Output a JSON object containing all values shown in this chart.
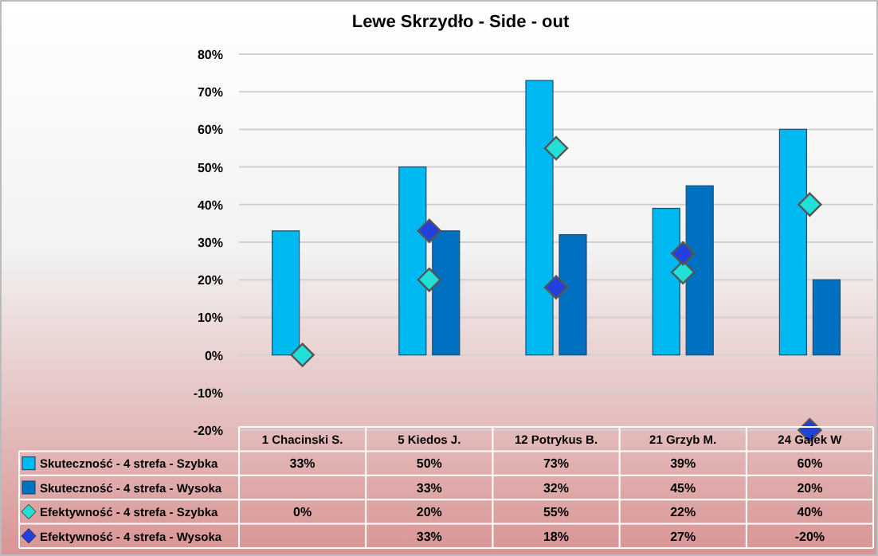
{
  "chart_data": {
    "type": "bar",
    "title": "Lewe Skrzydło - Side - out",
    "categories": [
      "1 Chacinski S.",
      "5 Kiedos J.",
      "12 Potrykus B.",
      "21 Grzyb M.",
      "24 Gajek W"
    ],
    "series": [
      {
        "name": "Skuteczność - 4 strefa - Szybka",
        "color": "#00b8f0",
        "values": [
          33,
          50,
          73,
          39,
          60
        ],
        "value_labels": [
          "33%",
          "50%",
          "73%",
          "39%",
          "60%"
        ]
      },
      {
        "name": "Skuteczność - 4 strefa - Wysoka",
        "color": "#0070c0",
        "values": [
          null,
          33,
          32,
          45,
          20
        ],
        "value_labels": [
          null,
          "33%",
          "32%",
          "45%",
          "20%"
        ]
      },
      {
        "name": "Efektywność - 4 strefa - Szybka",
        "type": "scatter",
        "color": "#20e0d8",
        "values": [
          0,
          20,
          55,
          22,
          40
        ],
        "value_labels": [
          "0%",
          "20%",
          "55%",
          "22%",
          "40%"
        ]
      },
      {
        "name": "Efektywność - 4 strefa - Wysoka",
        "type": "scatter",
        "color": "#2040e0",
        "values": [
          null,
          33,
          18,
          27,
          -20
        ],
        "value_labels": [
          null,
          "33%",
          "18%",
          "27%",
          "-20%"
        ]
      }
    ],
    "ylim": [
      -20,
      80
    ],
    "yticks": [
      {
        "value": -20,
        "label": "-20%"
      },
      {
        "value": -10,
        "label": "-10%"
      },
      {
        "value": 0,
        "label": "0%"
      },
      {
        "value": 10,
        "label": "10%"
      },
      {
        "value": 20,
        "label": "20%"
      },
      {
        "value": 30,
        "label": "30%"
      },
      {
        "value": 40,
        "label": "40%"
      },
      {
        "value": 50,
        "label": "50%"
      },
      {
        "value": 60,
        "label": "60%"
      },
      {
        "value": 70,
        "label": "70%"
      },
      {
        "value": 80,
        "label": "80%"
      }
    ],
    "grid": "y",
    "legend": "bottom",
    "marker": "diamond"
  }
}
